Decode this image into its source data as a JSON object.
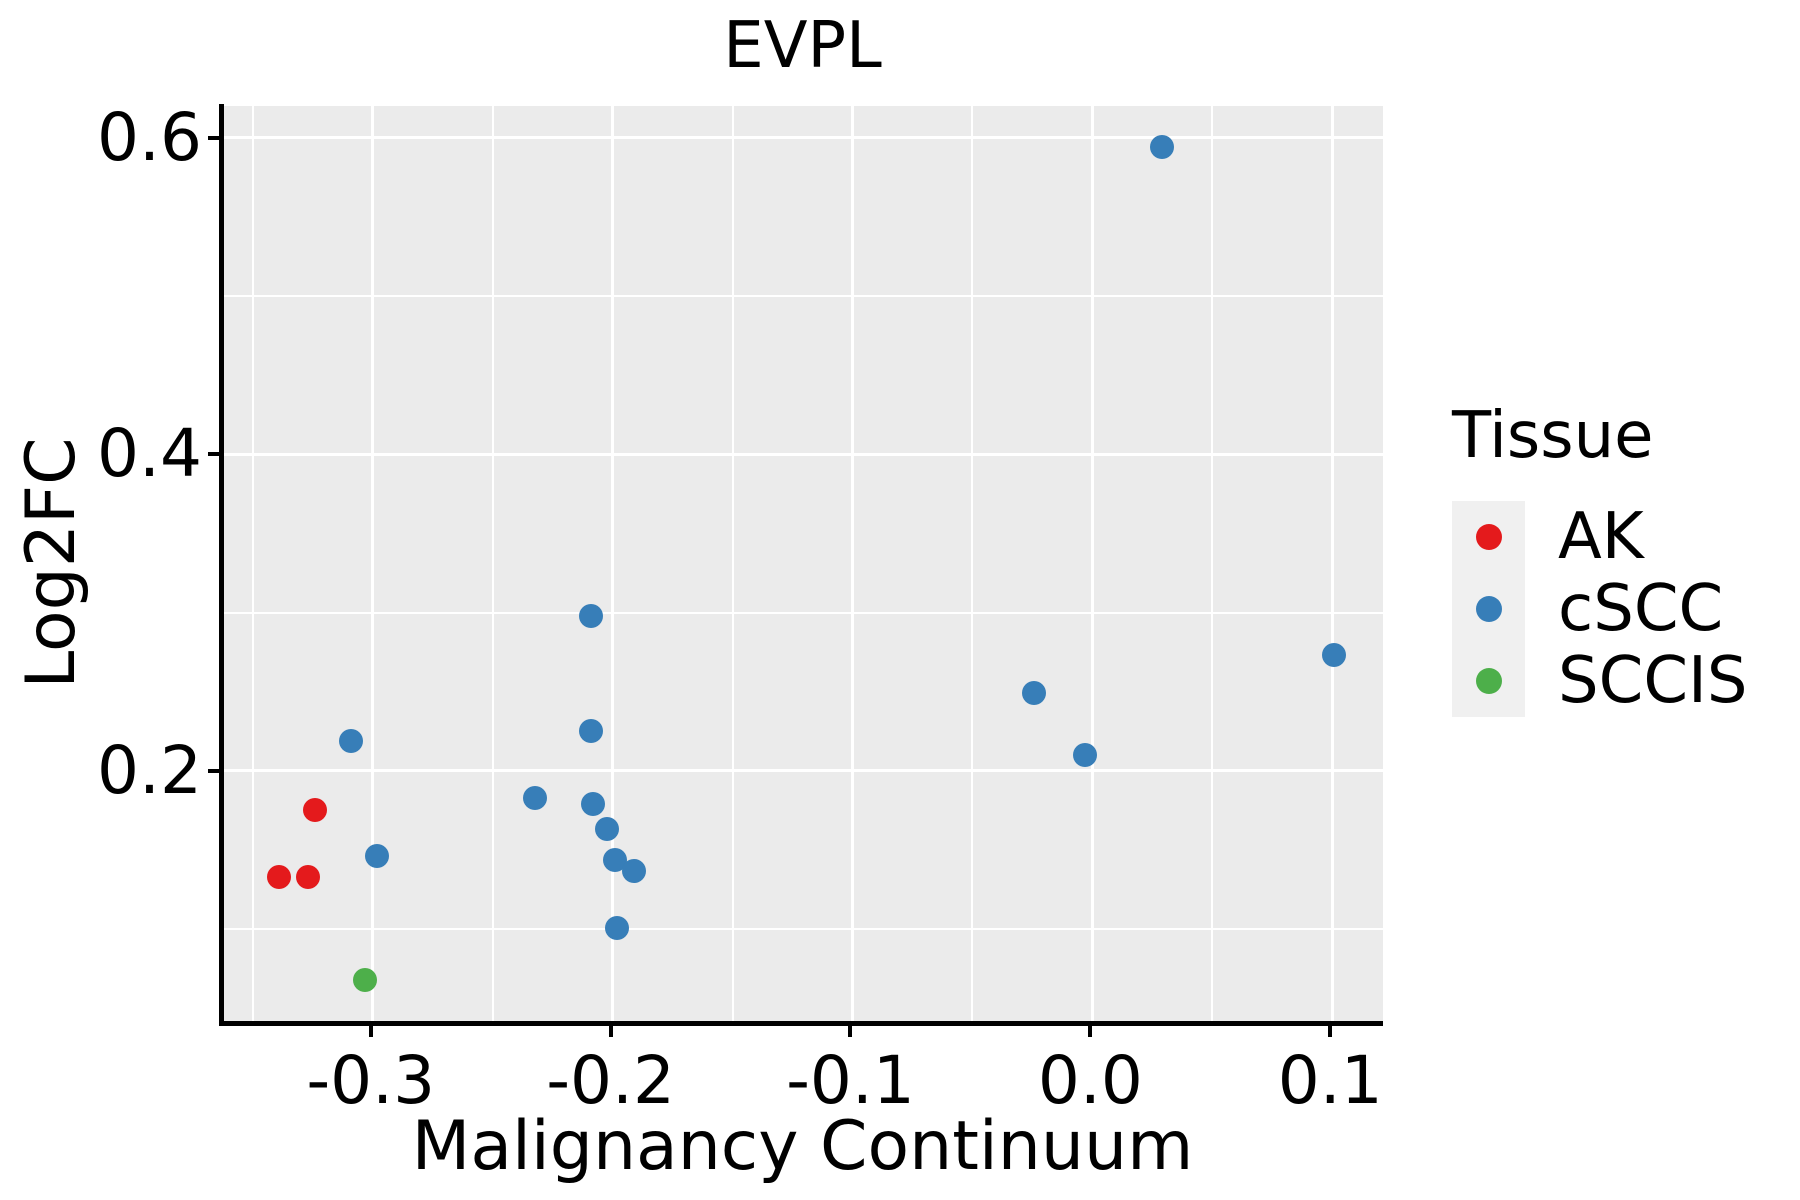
{
  "title": "EVPL",
  "axes": {
    "x": {
      "label": "Malignancy Continuum",
      "limits": [
        -0.362,
        0.122
      ],
      "major_ticks": [
        -0.3,
        -0.2,
        -0.1,
        0.0,
        0.1
      ],
      "tick_labels": [
        "-0.3",
        "-0.2",
        "-0.1",
        "0.0",
        "0.1"
      ],
      "minor_ticks": [
        -0.35,
        -0.25,
        -0.15,
        -0.05,
        0.05
      ]
    },
    "y": {
      "label": "Log2FC",
      "limits": [
        0.042,
        0.62
      ],
      "major_ticks": [
        0.2,
        0.4,
        0.6
      ],
      "tick_labels": [
        "0.2",
        "0.4",
        "0.6"
      ],
      "minor_ticks": [
        0.1,
        0.3,
        0.5
      ]
    }
  },
  "legend": {
    "title": "Tissue",
    "items": [
      {
        "label": "AK",
        "color": "#E41A1C"
      },
      {
        "label": "cSCC",
        "color": "#377EB8"
      },
      {
        "label": "SCCIS",
        "color": "#4DAF4A"
      }
    ]
  },
  "colors": {
    "panel_background": "#EBEBEB",
    "gridline": "#FFFFFF",
    "axis_line": "#000000",
    "text": "#000000",
    "legend_key_background": "#F0F0F0"
  },
  "chart_data": {
    "type": "scatter",
    "title": "EVPL",
    "xlabel": "Malignancy Continuum",
    "ylabel": "Log2FC",
    "xlim": [
      -0.362,
      0.122
    ],
    "ylim": [
      0.042,
      0.62
    ],
    "grid": true,
    "legend_title": "Tissue",
    "legend_position": "right",
    "series": [
      {
        "name": "AK",
        "color": "#E41A1C",
        "points": [
          [
            -0.325,
            0.175
          ],
          [
            -0.34,
            0.133
          ],
          [
            -0.328,
            0.133
          ]
        ]
      },
      {
        "name": "cSCC",
        "color": "#377EB8",
        "points": [
          [
            -0.31,
            0.219
          ],
          [
            -0.299,
            0.146
          ],
          [
            -0.233,
            0.183
          ],
          [
            -0.21,
            0.298
          ],
          [
            -0.21,
            0.225
          ],
          [
            -0.209,
            0.179
          ],
          [
            -0.203,
            0.163
          ],
          [
            -0.2,
            0.144
          ],
          [
            -0.192,
            0.137
          ],
          [
            -0.199,
            0.101
          ],
          [
            -0.025,
            0.249
          ],
          [
            -0.004,
            0.21
          ],
          [
            0.028,
            0.594
          ],
          [
            0.1,
            0.273
          ]
        ]
      },
      {
        "name": "SCCIS",
        "color": "#4DAF4A",
        "points": [
          [
            -0.304,
            0.068
          ]
        ]
      }
    ]
  }
}
